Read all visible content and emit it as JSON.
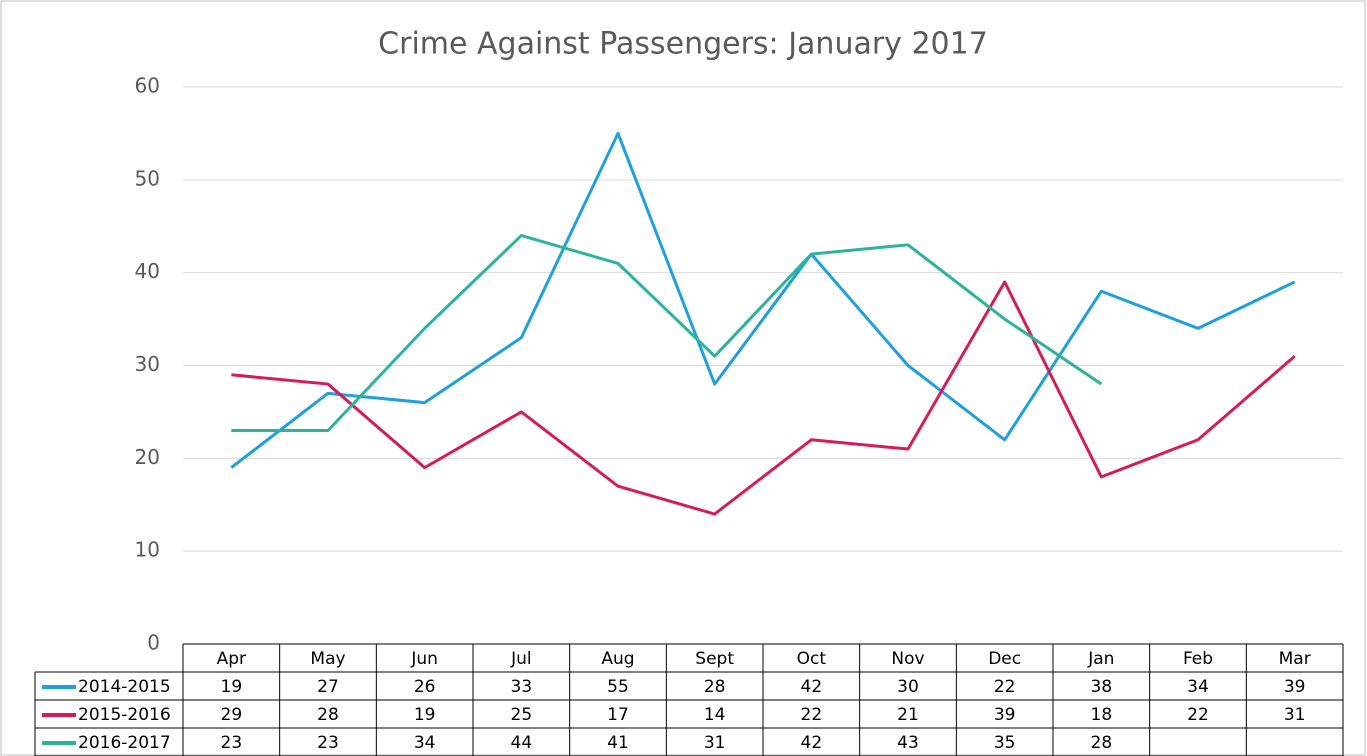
{
  "chart_data": {
    "type": "line",
    "title": "Crime Against Passengers:  January 2017",
    "categories": [
      "Apr",
      "May",
      "Jun",
      "Jul",
      "Aug",
      "Sept",
      "Oct",
      "Nov",
      "Dec",
      "Jan",
      "Feb",
      "Mar"
    ],
    "series": [
      {
        "name": "2014-2015",
        "color": "#1f9fdc",
        "values": [
          19,
          27,
          26,
          33,
          55,
          28,
          42,
          30,
          22,
          38,
          34,
          39
        ]
      },
      {
        "name": "2015-2016",
        "color": "#d41c5c",
        "values": [
          29,
          28,
          19,
          25,
          17,
          14,
          22,
          21,
          39,
          18,
          22,
          31
        ]
      },
      {
        "name": "2016-2017",
        "color": "#2cb39b",
        "values": [
          23,
          23,
          34,
          44,
          41,
          31,
          42,
          43,
          35,
          28,
          null,
          null
        ]
      }
    ],
    "ylim": [
      0,
      60
    ],
    "yticks": [
      0,
      10,
      20,
      30,
      40,
      50,
      60
    ],
    "grid": true
  }
}
